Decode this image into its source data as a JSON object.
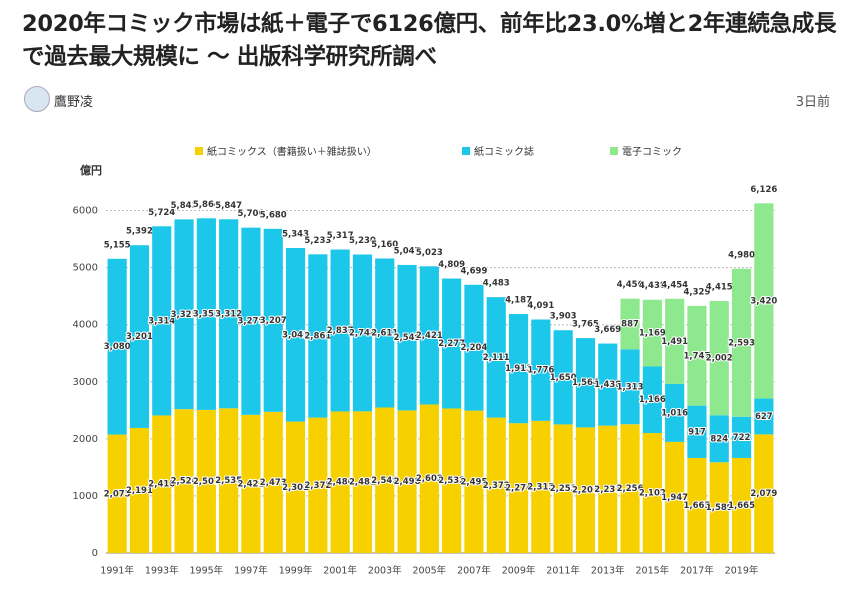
{
  "header": {
    "title": "2020年コミック市場は紙＋電子で6126億円、前年比23.0%増と2年連続急成長で過去最大規模に 〜 出版科学研究所調べ",
    "author": "鷹野凌",
    "time": "3日前"
  },
  "chart_data": {
    "type": "stacked_bar",
    "y_label": "億円",
    "categories": [
      "1991年",
      null,
      "1993年",
      null,
      "1995年",
      null,
      "1997年",
      null,
      "1999年",
      null,
      "2001年",
      null,
      "2003年",
      null,
      "2005年",
      null,
      "2007年",
      null,
      "2009年",
      null,
      "2011年",
      null,
      "2013年",
      null,
      "2015年",
      null,
      "2017年",
      null,
      "2019年",
      null
    ],
    "series": [
      {
        "name": "紙コミックス（書籍扱い＋雑誌扱い）",
        "color": "#f7d000",
        "values": [
          2075,
          2191,
          2410,
          2520,
          2507,
          2535,
          2421,
          2473,
          2302,
          2372,
          2480,
          2482,
          2549,
          2498,
          2602,
          2532,
          2495,
          2372,
          2274,
          2315,
          2253,
          2201,
          2231,
          2256,
          2102,
          1947,
          1665,
          1589,
          1665,
          2079
        ],
        "value_labels": [
          "2,075",
          "2,191",
          "2,410",
          "2,520",
          "2,507",
          "2,535",
          "2,421",
          "2,473",
          "2,302",
          "2,372",
          "2,480",
          "2,482",
          "2,549",
          "2,498",
          "2,602",
          "2,532",
          "2,495",
          "2,372",
          "2,274",
          "2,315",
          "2,253",
          "2,201",
          "2,231",
          "2,256",
          "2,102",
          "1,947",
          "1,665",
          "1,589",
          "1,665",
          "2,079"
        ]
      },
      {
        "name": "紙コミック誌",
        "color": "#1cc7ea",
        "values": [
          3080,
          3201,
          3314,
          3325,
          3357,
          3312,
          3279,
          3207,
          3041,
          2861,
          2837,
          2748,
          2611,
          2549,
          2421,
          2277,
          2204,
          2111,
          1913,
          1776,
          1650,
          1564,
          1438,
          1313,
          1166,
          1016,
          917,
          824,
          722,
          627
        ],
        "value_labels": [
          "3,080",
          "3,201",
          "3,314",
          "3,325",
          "3,357",
          "3,312",
          "3,279",
          "3,207",
          "3,041",
          "2,861",
          "2,837",
          "2,748",
          "2,611",
          "2,549",
          "2,421",
          "2,277",
          "2,204",
          "2,111",
          "1,913",
          "1,776",
          "1,650",
          "1,564",
          "1,438",
          "1,313",
          "1,166",
          "1,016",
          "917",
          "824",
          "722",
          "627"
        ]
      },
      {
        "name": "電子コミック",
        "color": "#8ee88e",
        "values": [
          null,
          null,
          null,
          null,
          null,
          null,
          null,
          null,
          null,
          null,
          null,
          null,
          null,
          null,
          null,
          null,
          null,
          null,
          null,
          null,
          null,
          null,
          null,
          887,
          1169,
          1491,
          1747,
          2002,
          2593,
          3420
        ],
        "value_labels": [
          null,
          null,
          null,
          null,
          null,
          null,
          null,
          null,
          null,
          null,
          null,
          null,
          null,
          null,
          null,
          null,
          null,
          null,
          null,
          null,
          null,
          null,
          null,
          "887",
          "1,169",
          "1,491",
          "1,747",
          "2,002",
          "2,593",
          "3,420"
        ]
      }
    ],
    "totals": [
      5155,
      5392,
      5724,
      5845,
      5864,
      5847,
      5700,
      5680,
      5343,
      5233,
      5317,
      5230,
      5160,
      5047,
      5023,
      4809,
      4699,
      4483,
      4187,
      4091,
      3903,
      3765,
      3669,
      4456,
      4438,
      4454,
      4329,
      4415,
      4980,
      6126
    ],
    "total_labels": [
      "5,155",
      "5,392",
      "5,724",
      "5,845",
      "5,864",
      "5,847",
      "5,700",
      "5,680",
      "5,343",
      "5,233",
      "5,317",
      "5,230",
      "5,160",
      "5,047",
      "5,023",
      "4,809",
      "4,699",
      "4,483",
      "4,187",
      "4,091",
      "3,903",
      "3,765",
      "3,669",
      "4,456",
      "4,438",
      "4,454",
      "4,329",
      "4,415",
      "4,980",
      "6,126"
    ],
    "ylim": [
      0,
      6500
    ],
    "yticks": [
      0,
      1000,
      2000,
      3000,
      4000,
      5000,
      6000
    ],
    "grid": true
  }
}
